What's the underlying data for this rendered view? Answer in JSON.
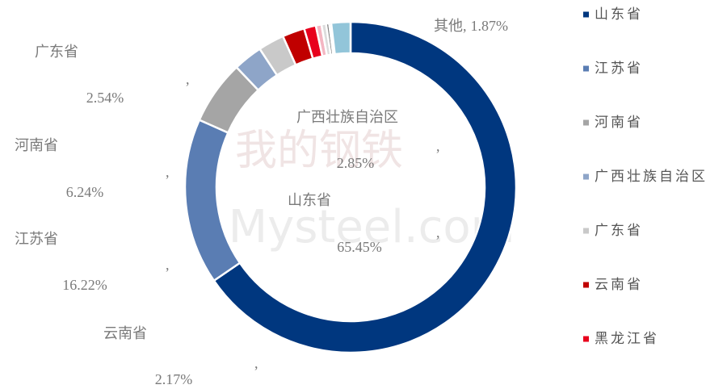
{
  "chart_data": {
    "type": "donut",
    "categories": [
      "山东省",
      "江苏省",
      "河南省",
      "广西壮族自治区",
      "广东省",
      "云南省",
      "黑龙江省",
      null,
      null,
      null,
      null,
      "其他"
    ],
    "values": [
      65.45,
      16.22,
      6.24,
      2.85,
      2.54,
      2.17,
      1.16,
      0.55,
      0.45,
      0.3,
      0.2,
      1.87
    ],
    "value_labels": [
      "65.45%",
      "16.22%",
      "6.24%",
      "2.85%",
      "2.54%",
      "2.17%",
      null,
      null,
      null,
      null,
      null,
      "1.87%"
    ],
    "label_separator": ",",
    "colors": [
      "#00377f",
      "#5a7db3",
      "#a5a5a5",
      "#8ea5c8",
      "#c9c9c9",
      "#c00000",
      "#e8001c",
      "#f4b6c2",
      "#dcdcdc",
      "#7f7f7f",
      "#1f3864",
      "#92c5d9"
    ],
    "legend": {
      "position": "right",
      "max_entries": 7
    },
    "watermark": [
      "我的钢铁",
      "Mysteel.com"
    ]
  }
}
